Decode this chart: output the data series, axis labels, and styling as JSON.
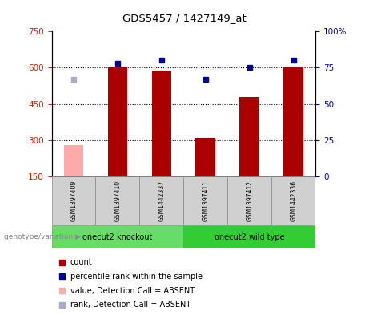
{
  "title": "GDS5457 / 1427149_at",
  "samples": [
    "GSM1397409",
    "GSM1397410",
    "GSM1442337",
    "GSM1397411",
    "GSM1397412",
    "GSM1442336"
  ],
  "count_values": [
    null,
    600,
    590,
    310,
    480,
    605
  ],
  "count_absent": [
    280,
    null,
    null,
    null,
    null,
    null
  ],
  "rank_values": [
    null,
    78,
    80,
    67,
    75,
    80
  ],
  "rank_absent": [
    67,
    null,
    null,
    null,
    null,
    null
  ],
  "groups": [
    {
      "label": "onecut2 knockout",
      "start": 0,
      "end": 3,
      "color": "#66dd66"
    },
    {
      "label": "onecut2 wild type",
      "start": 3,
      "end": 6,
      "color": "#33cc33"
    }
  ],
  "ylim_left": [
    150,
    750
  ],
  "ylim_right": [
    0,
    100
  ],
  "yticks_left": [
    150,
    300,
    450,
    600,
    750
  ],
  "yticks_right": [
    0,
    25,
    50,
    75,
    100
  ],
  "ylabel_left_color": "#cc2200",
  "ylabel_right_color": "#0000cc",
  "bar_color_present": "#aa0000",
  "bar_color_absent": "#ffaaaa",
  "dot_color_present": "#000099",
  "dot_color_absent": "#aaaacc",
  "background_color": "#ffffff",
  "plot_bg_color": "#ffffff",
  "sample_box_color": "#d0d0d0",
  "genotype_label": "genotype/variation",
  "legend_items": [
    {
      "color": "#aa0000",
      "label": "count"
    },
    {
      "color": "#000099",
      "label": "percentile rank within the sample"
    },
    {
      "color": "#ffaaaa",
      "label": "value, Detection Call = ABSENT"
    },
    {
      "color": "#aaaacc",
      "label": "rank, Detection Call = ABSENT"
    }
  ]
}
